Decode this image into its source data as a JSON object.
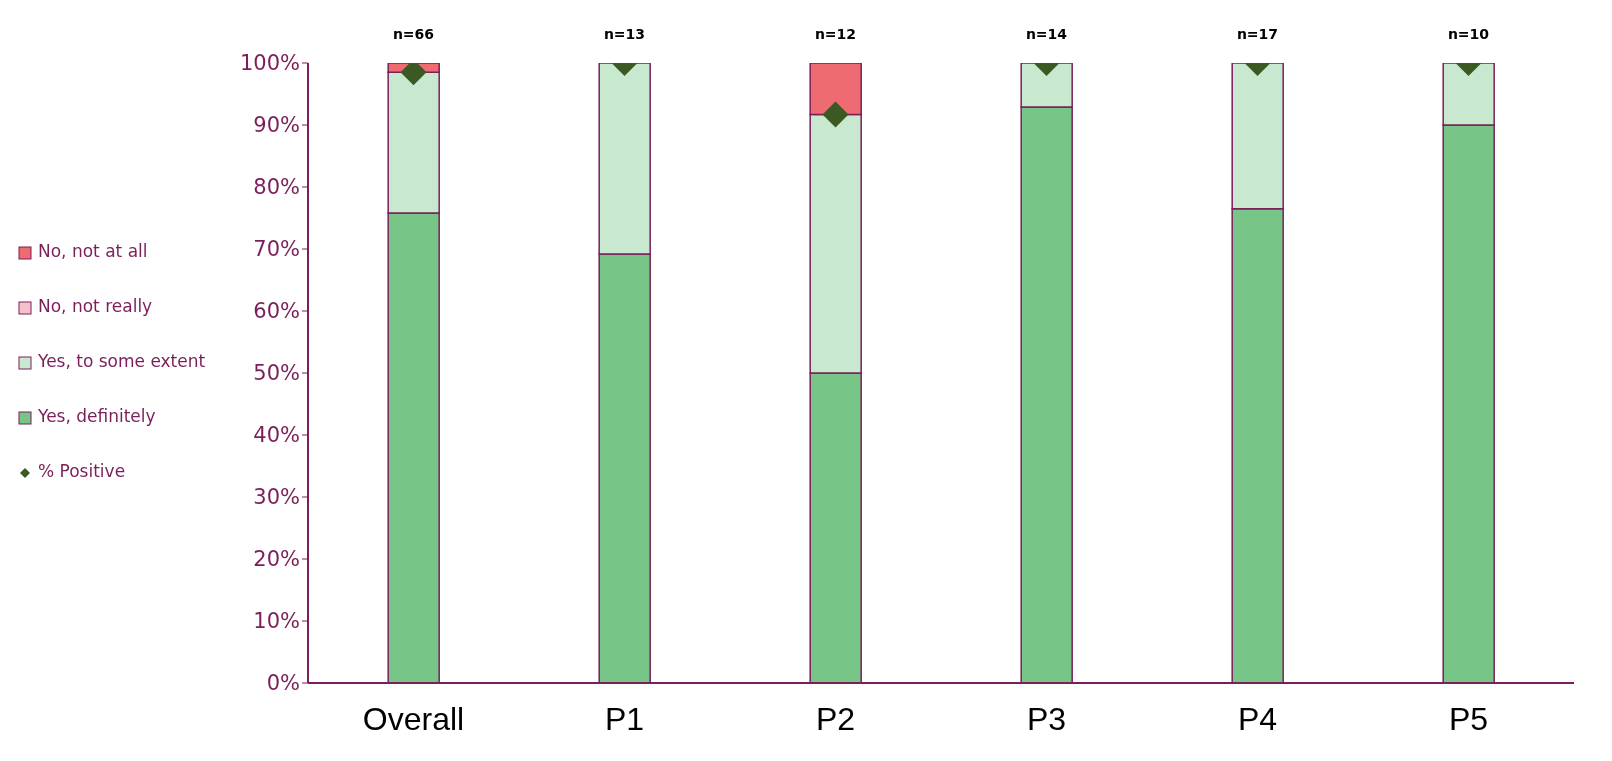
{
  "chart_data": {
    "type": "bar",
    "stacked": true,
    "legend": "left",
    "marker": "diamond",
    "grid": false,
    "categories": [
      "Overall",
      "P1",
      "P2",
      "P3",
      "P4",
      "P5"
    ],
    "series": [
      {
        "name": "Yes, definitely",
        "color": "#77c587",
        "values": [
          75.8,
          69.2,
          50,
          92.9,
          76.5,
          90
        ]
      },
      {
        "name": "Yes, to some extent",
        "color": "#c9e8d0",
        "values": [
          22.7,
          30.8,
          41.7,
          7.1,
          23.5,
          10
        ]
      },
      {
        "name": "No, not really",
        "color": "#f5c0cb",
        "values": [
          0,
          0,
          0,
          0,
          0,
          0
        ]
      },
      {
        "name": "No, not at all",
        "color": "#ef6b72",
        "values": [
          1.5,
          0,
          8.3,
          0,
          0,
          0
        ]
      },
      {
        "name": "% Positive",
        "type": "scatter",
        "color": "#3b5a23",
        "values": [
          98.5,
          100,
          91.7,
          100,
          100,
          100
        ]
      }
    ],
    "ylim": [
      0,
      100
    ],
    "yticks": [
      {
        "value": 0,
        "label": "0%"
      },
      {
        "value": 10,
        "label": "10%"
      },
      {
        "value": 20,
        "label": "20%"
      },
      {
        "value": 30,
        "label": "30%"
      },
      {
        "value": 40,
        "label": "40%"
      },
      {
        "value": 50,
        "label": "50%"
      },
      {
        "value": 60,
        "label": "60%"
      },
      {
        "value": 70,
        "label": "70%"
      },
      {
        "value": 80,
        "label": "80%"
      },
      {
        "value": 90,
        "label": "90%"
      },
      {
        "value": 100,
        "label": "100%"
      }
    ],
    "annotations": [
      "n=66",
      "n=13",
      "n=12",
      "n=14",
      "n=17",
      "n=10"
    ]
  }
}
